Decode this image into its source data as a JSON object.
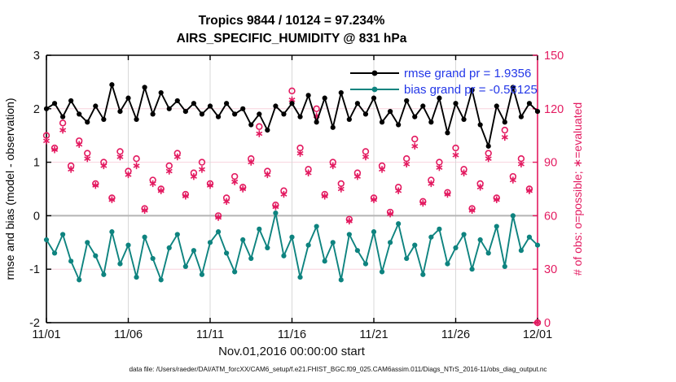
{
  "title": {
    "line1": "Tropics 9844 / 10124 = 97.234%",
    "line2": "AIRS_SPECIFIC_HUMIDITY @ 831 hPa"
  },
  "footer": {
    "data_file": "data file: /Users/raeder/DAI/ATM_forcXX/CAM6_setup/f.e21.FHIST_BGC.f09_025.CAM6assim.011/Diags_NTrS_2016-11/obs_diag_output.nc"
  },
  "colors": {
    "rmse_black": "#000000",
    "bias_teal": "#0e837f",
    "obs_pink": "#e31a60",
    "legend_blue": "#2337e8",
    "grid_gray": "#d8d8d8",
    "zero_gray": "#b5b5b5",
    "pink_grid": "#f8d2de"
  },
  "chart_data": {
    "type": "line",
    "title": "Tropics 9844 / 10124 = 97.234%",
    "subtitle": "AIRS_SPECIFIC_HUMIDITY @ 831 hPa",
    "x_axis": {
      "label": "Nov.01,2016 00:00:00 start",
      "range_days": [
        0,
        30
      ],
      "tick_days": [
        0,
        5,
        10,
        15,
        20,
        25,
        30
      ],
      "tick_labels": [
        "11/01",
        "11/06",
        "11/11",
        "11/16",
        "11/21",
        "11/26",
        "12/01"
      ],
      "step_days": 0.5,
      "grid": true
    },
    "y_left": {
      "label": "rmse and bias (model - observation)",
      "range": [
        -2,
        3
      ],
      "ticks": [
        -2,
        -1,
        0,
        1,
        2,
        3
      ],
      "zero_line": true,
      "color": "#000000"
    },
    "y_right": {
      "label": "# of obs: o=possible; ∗=evaluated",
      "range": [
        0,
        150
      ],
      "ticks": [
        0,
        30,
        60,
        90,
        120,
        150
      ],
      "color": "#e31a60"
    },
    "legend": [
      {
        "label": "rmse grand pr = 1.9356",
        "color": "#000000",
        "marker": "dot",
        "value": 1.9356
      },
      {
        "label": "bias grand pr = -0.56125",
        "color": "#0e837f",
        "marker": "dot",
        "value": -0.56125
      }
    ],
    "series": [
      {
        "name": "rmse",
        "axis": "left",
        "style": "line-dot",
        "color": "#000000",
        "values": [
          2.0,
          2.1,
          1.85,
          2.15,
          1.9,
          1.75,
          2.05,
          1.8,
          2.45,
          1.95,
          2.2,
          1.8,
          2.4,
          1.9,
          2.3,
          2.0,
          2.15,
          1.95,
          2.1,
          1.9,
          2.05,
          1.85,
          2.1,
          1.9,
          2.0,
          1.7,
          1.9,
          1.6,
          2.05,
          1.9,
          2.1,
          1.85,
          2.25,
          1.75,
          2.2,
          1.65,
          2.3,
          1.8,
          2.1,
          1.9,
          2.2,
          1.75,
          1.95,
          1.7,
          2.15,
          1.85,
          2.05,
          1.75,
          2.2,
          1.55,
          2.1,
          1.8,
          2.35,
          1.7,
          1.3,
          2.05,
          1.75,
          2.4,
          1.85,
          2.1,
          1.95
        ]
      },
      {
        "name": "bias",
        "axis": "left",
        "style": "line-dot",
        "color": "#0e837f",
        "values": [
          -0.45,
          -0.7,
          -0.35,
          -0.85,
          -1.2,
          -0.5,
          -0.75,
          -1.1,
          -0.3,
          -0.9,
          -0.55,
          -1.15,
          -0.4,
          -0.8,
          -1.2,
          -0.6,
          -0.35,
          -0.95,
          -0.65,
          -1.1,
          -0.5,
          -0.3,
          -0.7,
          -1.05,
          -0.45,
          -0.8,
          -0.25,
          -0.6,
          0.05,
          -0.75,
          -0.4,
          -1.15,
          -0.55,
          -0.2,
          -0.85,
          -0.5,
          -1.2,
          -0.35,
          -0.65,
          -0.9,
          -0.3,
          -1.05,
          -0.5,
          -0.15,
          -0.8,
          -0.55,
          -1.1,
          -0.4,
          -0.25,
          -0.9,
          -0.6,
          -0.35,
          -1.0,
          -0.45,
          -0.7,
          -0.2,
          -0.95,
          0.0,
          -0.65,
          -0.4,
          -0.55
        ]
      },
      {
        "name": "possible",
        "axis": "right",
        "style": "open-circle",
        "color": "#e31a60",
        "values": [
          105,
          98,
          112,
          88,
          102,
          95,
          78,
          90,
          70,
          96,
          85,
          92,
          64,
          80,
          75,
          88,
          95,
          72,
          84,
          90,
          78,
          60,
          70,
          82,
          76,
          92,
          110,
          85,
          66,
          74,
          130,
          98,
          86,
          120,
          72,
          90,
          78,
          58,
          84,
          96,
          70,
          88,
          62,
          76,
          92,
          103,
          68,
          80,
          90,
          73,
          98,
          86,
          64,
          78,
          95,
          70,
          108,
          82,
          92,
          75,
          0
        ]
      },
      {
        "name": "evaluated",
        "axis": "right",
        "style": "asterisk",
        "color": "#e31a60",
        "values": [
          102,
          97,
          108,
          86,
          100,
          92,
          77,
          88,
          69,
          93,
          83,
          88,
          63,
          78,
          74,
          85,
          93,
          71,
          82,
          86,
          77,
          59,
          68,
          79,
          75,
          90,
          106,
          83,
          65,
          72,
          125,
          95,
          84,
          116,
          71,
          88,
          75,
          57,
          82,
          93,
          69,
          86,
          61,
          74,
          89,
          99,
          67,
          78,
          87,
          72,
          94,
          84,
          63,
          76,
          92,
          69,
          104,
          80,
          89,
          74,
          0
        ]
      }
    ]
  }
}
